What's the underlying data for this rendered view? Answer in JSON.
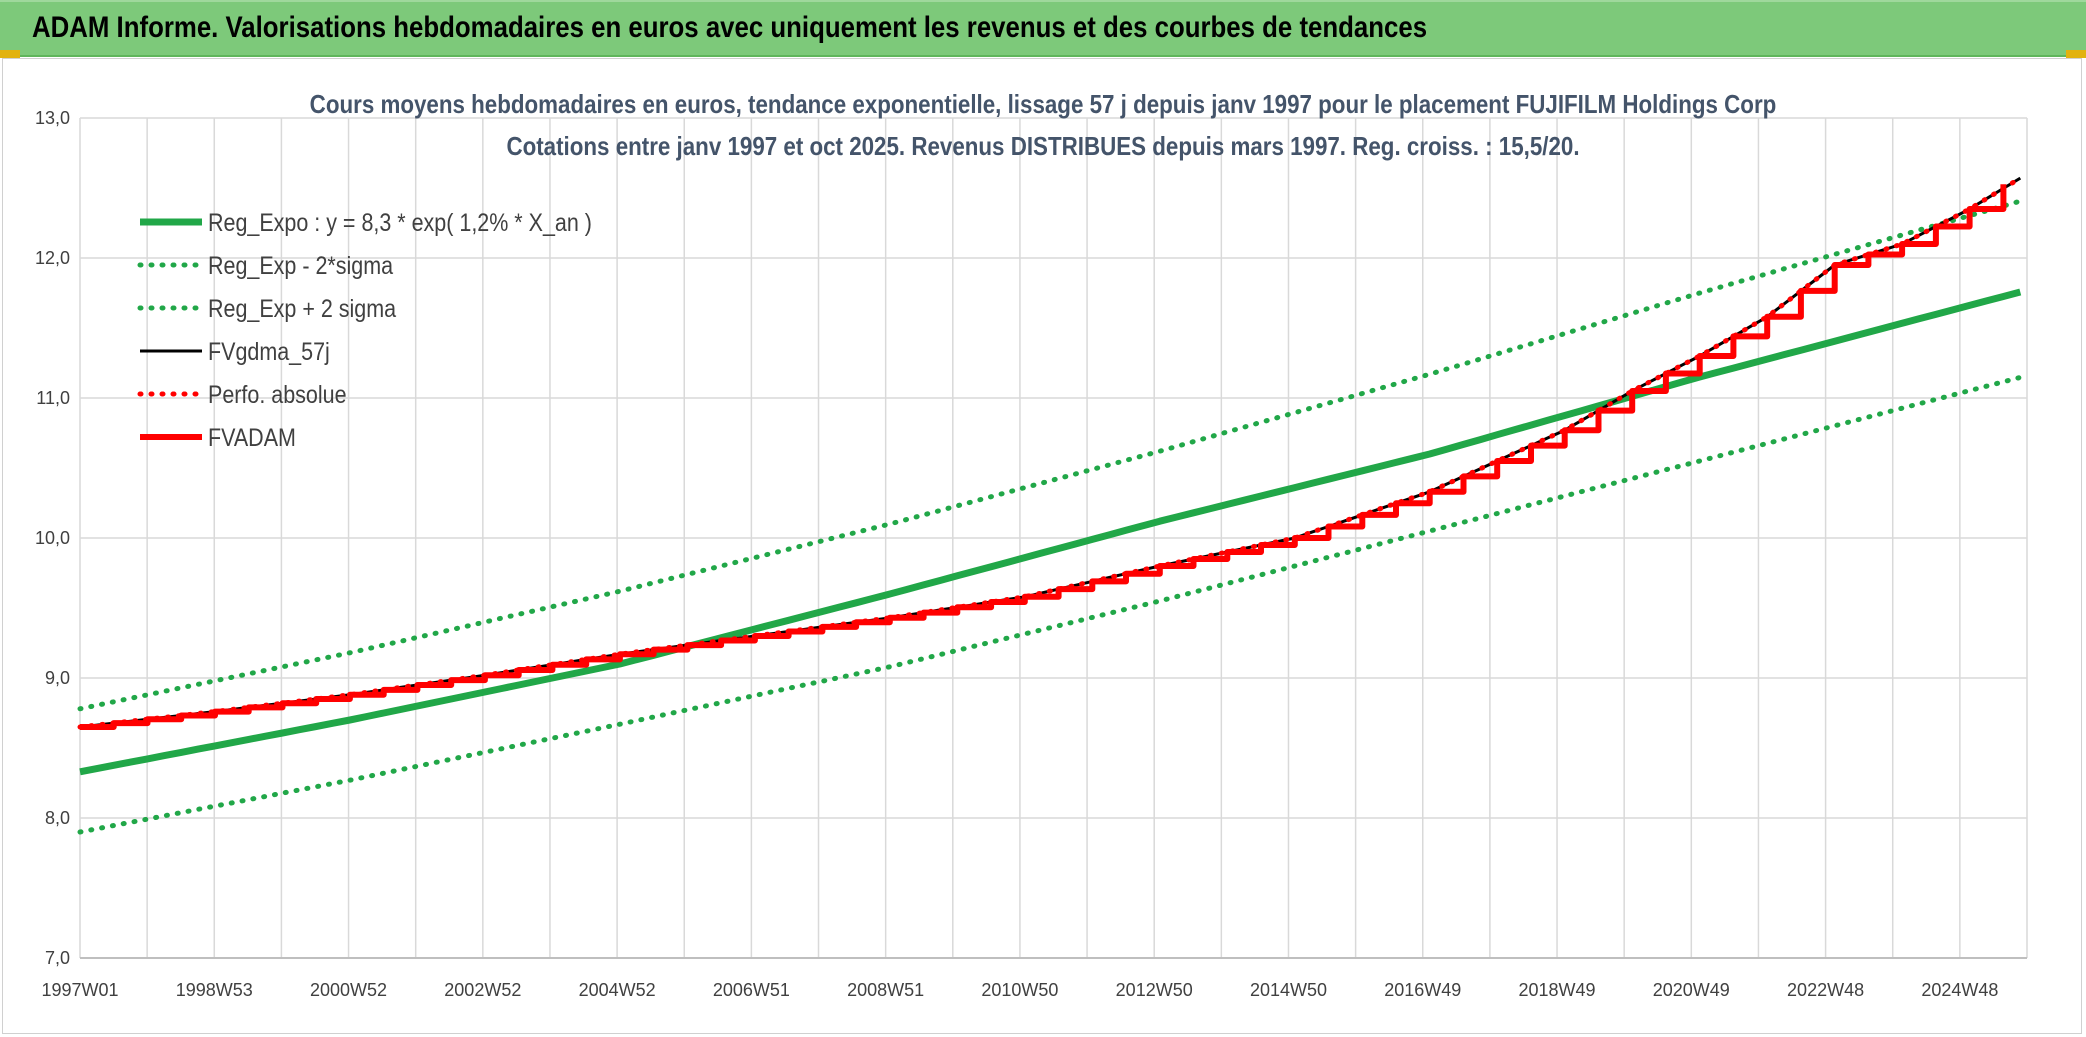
{
  "header": {
    "title": "ADAM Informe. Valorisations hebdomadaires en euros avec uniquement les revenus et des courbes de tendances"
  },
  "colors": {
    "banner": "#7dc97a",
    "trend_green": "#21a748",
    "dotted_green": "#21a748",
    "black_line": "#000000",
    "red_line": "#ff0000",
    "grid": "#d9d9d9"
  },
  "chart_data": {
    "type": "line",
    "title": "Cours moyens hebdomadaires en euros, tendance exponentielle, lissage 57 j depuis janv 1997 pour le placement FUJIFILM Holdings Corp",
    "subtitle": "Cotations entre janv 1997 et oct 2025. Revenus DISTRIBUES depuis mars 1997. Reg. croiss. : 15,5/20.",
    "ylim": [
      7.0,
      13.0
    ],
    "y_ticks": [
      "7,0",
      "8,0",
      "9,0",
      "10,0",
      "11,0",
      "12,0",
      "13,0"
    ],
    "y_tick_values": [
      7,
      8,
      9,
      10,
      11,
      12,
      13
    ],
    "x_ticks": [
      "1997W01",
      "1998W53",
      "2000W52",
      "2002W52",
      "2004W52",
      "2006W51",
      "2008W51",
      "2010W50",
      "2012W50",
      "2014W50",
      "2016W49",
      "2018W49",
      "2020W49",
      "2022W48",
      "2024W48"
    ],
    "xlim": [
      1997.0,
      2025.85
    ],
    "grid": true,
    "legend_position": "top-left",
    "series": [
      {
        "name": "Reg_Expo : y = 8,3 * exp( 1,2% *  X_an )",
        "style": "solid-thick",
        "color": "#21a748",
        "x": [
          1997.0,
          2001.0,
          2005.0,
          2009.0,
          2013.0,
          2017.0,
          2021.0,
          2025.85
        ],
        "values": [
          8.33,
          8.7,
          9.1,
          9.6,
          10.12,
          10.6,
          11.15,
          11.77
        ]
      },
      {
        "name": "Reg_Exp - 2*sigma",
        "style": "dotted",
        "color": "#21a748",
        "x": [
          1997.0,
          2001.0,
          2005.0,
          2009.0,
          2013.0,
          2017.0,
          2021.0,
          2025.85
        ],
        "values": [
          7.9,
          8.27,
          8.67,
          9.08,
          9.55,
          10.05,
          10.55,
          11.16
        ]
      },
      {
        "name": "Reg_Exp + 2 sigma",
        "style": "dotted",
        "color": "#21a748",
        "x": [
          1997.0,
          2001.0,
          2005.0,
          2009.0,
          2013.0,
          2017.0,
          2021.0,
          2025.85
        ],
        "values": [
          8.78,
          9.18,
          9.62,
          10.1,
          10.62,
          11.17,
          11.75,
          12.42
        ]
      },
      {
        "name": "FVgdma_57j",
        "style": "solid-thin",
        "color": "#000000",
        "x": [
          1997.0,
          1999.0,
          2001.0,
          2003.0,
          2005.0,
          2007.0,
          2009.0,
          2011.0,
          2013.0,
          2015.0,
          2017.0,
          2019.0,
          2020.0,
          2021.0,
          2022.0,
          2023.0,
          2024.0,
          2025.0,
          2025.85
        ],
        "values": [
          8.65,
          8.76,
          8.88,
          9.02,
          9.17,
          9.3,
          9.43,
          9.58,
          9.8,
          10.0,
          10.33,
          10.77,
          11.05,
          11.3,
          11.58,
          11.95,
          12.1,
          12.35,
          12.6
        ]
      },
      {
        "name": "Perfo. absolue",
        "style": "dotted",
        "color": "#ff0000",
        "x": [
          1997.0,
          1999.0,
          2001.0,
          2003.0,
          2005.0,
          2007.0,
          2009.0,
          2011.0,
          2013.0,
          2015.0,
          2017.0,
          2019.0,
          2020.0,
          2021.0,
          2022.0,
          2023.0,
          2024.0,
          2025.0,
          2025.85
        ],
        "values": [
          8.65,
          8.76,
          8.88,
          9.02,
          9.17,
          9.3,
          9.43,
          9.58,
          9.8,
          10.0,
          10.33,
          10.77,
          11.05,
          11.3,
          11.58,
          11.95,
          12.1,
          12.35,
          12.6
        ]
      },
      {
        "name": "FVADAM",
        "style": "steps-thick",
        "color": "#ff0000",
        "x": [
          1997.0,
          1999.0,
          2001.0,
          2003.0,
          2005.0,
          2007.0,
          2009.0,
          2011.0,
          2013.0,
          2015.0,
          2017.0,
          2019.0,
          2020.0,
          2021.0,
          2022.0,
          2023.0,
          2024.0,
          2025.0,
          2025.85
        ],
        "values": [
          8.65,
          8.76,
          8.88,
          9.02,
          9.17,
          9.3,
          9.43,
          9.58,
          9.8,
          10.0,
          10.33,
          10.77,
          11.05,
          11.3,
          11.58,
          11.95,
          12.1,
          12.35,
          12.65
        ]
      }
    ]
  }
}
